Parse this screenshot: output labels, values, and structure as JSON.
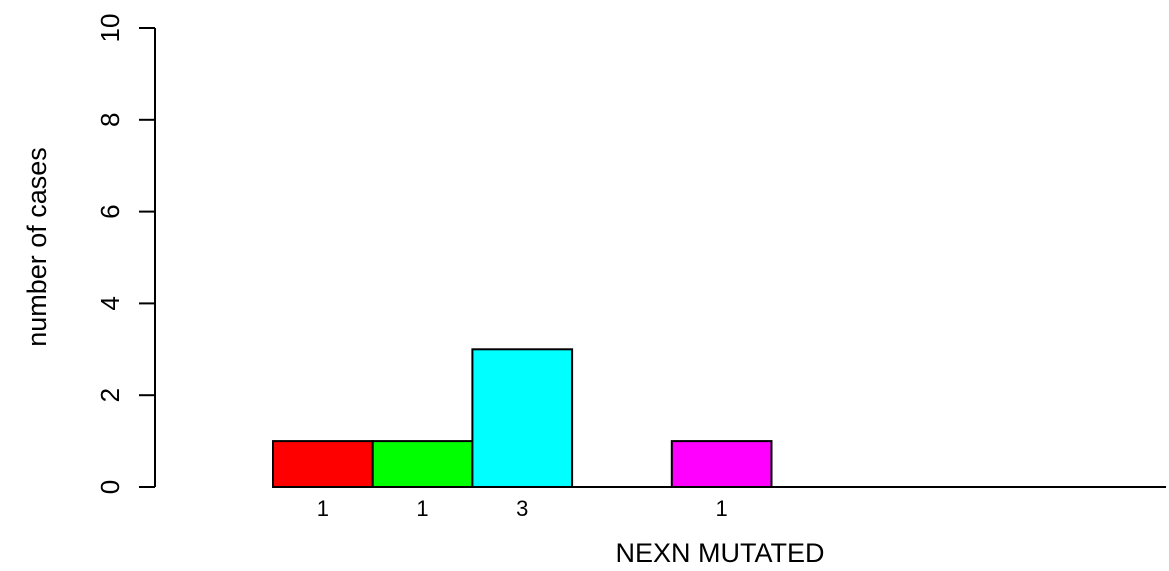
{
  "chart_data": {
    "type": "bar",
    "xlabel": "NEXN MUTATED",
    "ylabel": "number of cases",
    "ylim": [
      0,
      10
    ],
    "yticks": [
      0,
      2,
      4,
      6,
      8,
      10
    ],
    "grid": false,
    "legend": "none",
    "bars": [
      {
        "value": 1,
        "label": "1",
        "color": "#ff0000"
      },
      {
        "value": 1,
        "label": "1",
        "color": "#00ff00"
      },
      {
        "value": 3,
        "label": "3",
        "color": "#00ffff"
      },
      {
        "value": 0,
        "label": "",
        "color": "#0000ff"
      },
      {
        "value": 1,
        "label": "1",
        "color": "#ff00ff"
      },
      {
        "value": 0,
        "label": "",
        "color": "#ffff00"
      },
      {
        "value": 0,
        "label": "",
        "color": "#000000"
      },
      {
        "value": 0,
        "label": "",
        "color": "#ff0000"
      }
    ]
  }
}
